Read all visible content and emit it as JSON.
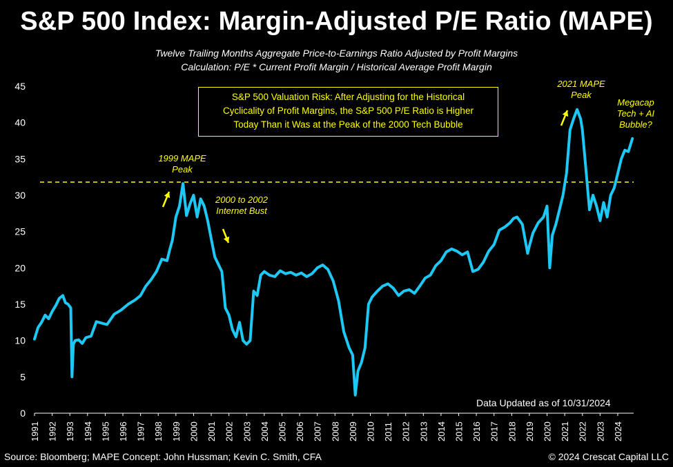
{
  "title": "S&P 500 Index: Margin-Adjusted P/E Ratio (MAPE)",
  "subtitle_line1": "Twelve Trailing Months Aggregate Price-to-Earnings Ratio Adjusted by Profit Margins",
  "subtitle_line2": "Calculation: P/E * Current Profit Margin / Historical Average Profit Margin",
  "note_box": {
    "line1": "S&P 500 Valuation Risk: After Adjusting for the Historical",
    "line2": "Cyclicality of Profit Margins, the S&P 500 P/E Ratio is Higher",
    "line3": "Today Than it Was at the Peak of the 2000 Tech Bubble"
  },
  "annotations": {
    "peak_1999": {
      "line1": "1999 MAPE",
      "line2": "Peak"
    },
    "bust_2000": {
      "line1": "2000 to 2002",
      "line2": "Internet Bust"
    },
    "peak_2021": {
      "line1": "2021 MAPE",
      "line2": "Peak"
    },
    "megacap": {
      "line1": "Megacap",
      "line2": "Tech + AI",
      "line3": "Bubble?"
    }
  },
  "updated_text": "Data Updated as of 10/31/2024",
  "footer_source": "Source: Bloomberg; MAPE Concept: John Hussman; Kevin C. Smith, CFA",
  "footer_copyright": "© 2024 Crescat Capital LLC",
  "colors": {
    "background": "#000000",
    "line": "#1ec8f5",
    "accent": "#ffff00",
    "text": "#ffffff"
  },
  "chart_data": {
    "type": "line",
    "title": "S&P 500 Index: Margin-Adjusted P/E Ratio (MAPE)",
    "xlabel": "",
    "ylabel": "",
    "ylim": [
      0,
      45
    ],
    "xlim": [
      1991,
      2024.9
    ],
    "yticks": [
      0,
      5,
      10,
      15,
      20,
      25,
      30,
      35,
      40,
      45
    ],
    "xticks": [
      "1991",
      "1992",
      "1993",
      "1994",
      "1995",
      "1996",
      "1997",
      "1998",
      "1999",
      "2000",
      "2001",
      "2002",
      "2003",
      "2004",
      "2005",
      "2006",
      "2007",
      "2008",
      "2009",
      "2010",
      "2011",
      "2012",
      "2013",
      "2014",
      "2015",
      "2016",
      "2017",
      "2018",
      "2019",
      "2020",
      "2021",
      "2022",
      "2023",
      "2024"
    ],
    "grid": false,
    "reference_line": {
      "y": 31.8,
      "style": "dashed",
      "color": "#ffff00"
    },
    "series": [
      {
        "color": "#1ec8f5",
        "x": [
          1991.0,
          1991.2,
          1991.4,
          1991.6,
          1991.8,
          1992.0,
          1992.2,
          1992.4,
          1992.6,
          1992.75,
          1992.9,
          1993.05,
          1993.12,
          1993.2,
          1993.3,
          1993.5,
          1993.7,
          1993.9,
          1994.2,
          1994.5,
          1994.8,
          1995.1,
          1995.5,
          1995.9,
          1996.3,
          1996.7,
          1997.0,
          1997.3,
          1997.6,
          1997.9,
          1998.2,
          1998.5,
          1998.65,
          1998.8,
          1999.0,
          1999.2,
          1999.4,
          1999.6,
          1999.8,
          2000.0,
          2000.2,
          2000.4,
          2000.6,
          2000.8,
          2001.0,
          2001.2,
          2001.4,
          2001.6,
          2001.8,
          2002.0,
          2002.2,
          2002.4,
          2002.6,
          2002.8,
          2003.0,
          2003.2,
          2003.4,
          2003.6,
          2003.8,
          2004.0,
          2004.3,
          2004.6,
          2004.9,
          2005.2,
          2005.5,
          2005.8,
          2006.1,
          2006.4,
          2006.7,
          2007.0,
          2007.3,
          2007.6,
          2007.9,
          2008.2,
          2008.5,
          2008.8,
          2009.0,
          2009.15,
          2009.3,
          2009.5,
          2009.7,
          2009.9,
          2010.1,
          2010.4,
          2010.7,
          2011.0,
          2011.3,
          2011.6,
          2011.9,
          2012.2,
          2012.5,
          2012.8,
          2013.1,
          2013.4,
          2013.7,
          2014.0,
          2014.3,
          2014.6,
          2014.9,
          2015.2,
          2015.5,
          2015.8,
          2016.1,
          2016.4,
          2016.7,
          2017.0,
          2017.3,
          2017.6,
          2017.9,
          2018.1,
          2018.3,
          2018.6,
          2018.9,
          2019.0,
          2019.2,
          2019.5,
          2019.8,
          2020.0,
          2020.15,
          2020.3,
          2020.5,
          2020.7,
          2020.9,
          2021.1,
          2021.3,
          2021.5,
          2021.7,
          2021.9,
          2022.0,
          2022.2,
          2022.4,
          2022.6,
          2022.8,
          2023.0,
          2023.2,
          2023.4,
          2023.6,
          2023.8,
          2024.0,
          2024.2,
          2024.4,
          2024.6,
          2024.83
        ],
        "values": [
          10.2,
          11.8,
          12.5,
          13.5,
          13.0,
          14.0,
          14.8,
          15.8,
          16.2,
          15.2,
          15.0,
          14.5,
          5.0,
          9.5,
          10.0,
          10.1,
          9.6,
          10.4,
          10.6,
          12.6,
          12.4,
          12.2,
          13.6,
          14.2,
          15.0,
          15.6,
          16.2,
          17.5,
          18.4,
          19.5,
          21.2,
          21.0,
          22.5,
          23.8,
          27.0,
          28.5,
          31.6,
          27.2,
          28.8,
          30.0,
          27.0,
          29.5,
          28.5,
          26.5,
          24.0,
          21.5,
          20.5,
          19.5,
          14.5,
          13.5,
          11.5,
          10.5,
          12.5,
          10.0,
          9.5,
          10.0,
          16.8,
          16.2,
          19.0,
          19.5,
          19.0,
          18.8,
          19.6,
          19.2,
          19.4,
          19.0,
          19.3,
          18.8,
          19.2,
          20.0,
          20.4,
          19.8,
          18.2,
          15.5,
          11.2,
          9.0,
          8.0,
          2.5,
          5.8,
          7.0,
          9.0,
          15.0,
          16.0,
          16.8,
          17.5,
          17.8,
          17.2,
          16.2,
          16.8,
          17.0,
          16.5,
          17.5,
          18.6,
          19.0,
          20.3,
          21.0,
          22.2,
          22.6,
          22.3,
          21.8,
          22.2,
          19.5,
          19.8,
          20.8,
          22.3,
          23.2,
          25.2,
          25.6,
          26.2,
          26.8,
          27.0,
          26.0,
          22.0,
          23.0,
          24.8,
          26.2,
          27.0,
          28.5,
          20.0,
          24.5,
          26.0,
          28.0,
          30.0,
          33.0,
          39.0,
          40.5,
          41.8,
          40.5,
          39.0,
          33.5,
          28.0,
          30.0,
          28.5,
          26.5,
          29.0,
          27.0,
          30.0,
          31.0,
          33.0,
          35.0,
          36.2,
          36.0,
          37.8
        ]
      }
    ]
  }
}
